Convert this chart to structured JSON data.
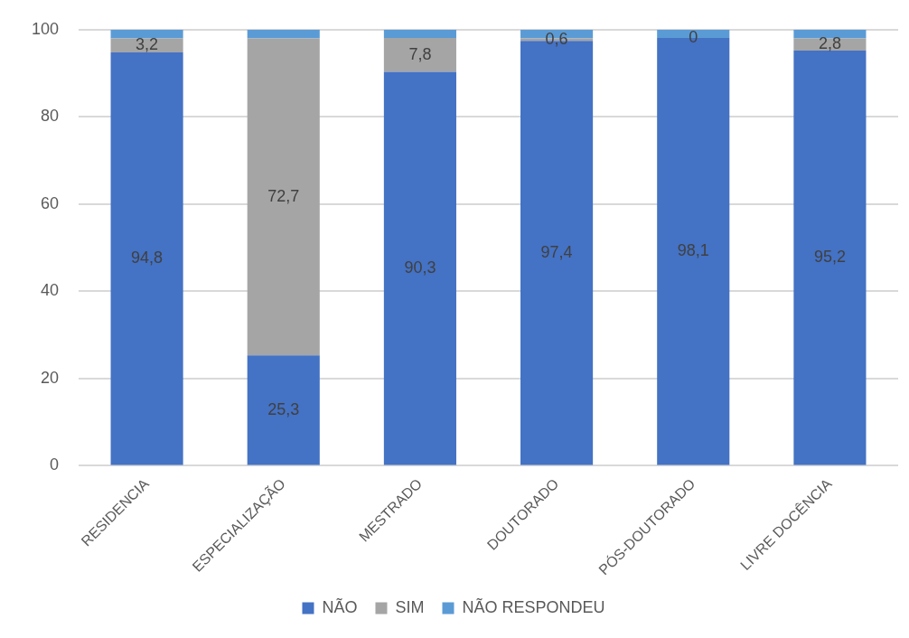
{
  "chart_data": {
    "type": "bar",
    "stacked": true,
    "categories": [
      "RESIDENCIA",
      "ESPECIALIZAÇÃO",
      "MESTRADO",
      "DOUTORADO",
      "PÓS-DOUTORADO",
      "LIVRE DOCÊNCIA"
    ],
    "series": [
      {
        "name": "NÃO",
        "color": "#4472c4",
        "values": [
          94.8,
          25.3,
          90.3,
          97.4,
          98.1,
          95.2
        ],
        "value_labels": [
          "94,8",
          "25,3",
          "90,3",
          "97,4",
          "98,1",
          "95,2"
        ]
      },
      {
        "name": "SIM",
        "color": "#a5a5a5",
        "values": [
          3.2,
          72.7,
          7.8,
          0.6,
          0,
          2.8
        ],
        "value_labels": [
          "3,2",
          "72,7",
          "7,8",
          "0,6",
          "0",
          "2,8"
        ]
      },
      {
        "name": "NÃO RESPONDEU",
        "color": "#5b9bd5",
        "values": [
          2.0,
          2.0,
          1.9,
          2.0,
          1.9,
          2.0
        ]
      }
    ],
    "ylim": [
      0,
      100
    ],
    "yticks": [
      0,
      20,
      40,
      60,
      80,
      100
    ],
    "grid": "y",
    "legend": "bottom"
  }
}
